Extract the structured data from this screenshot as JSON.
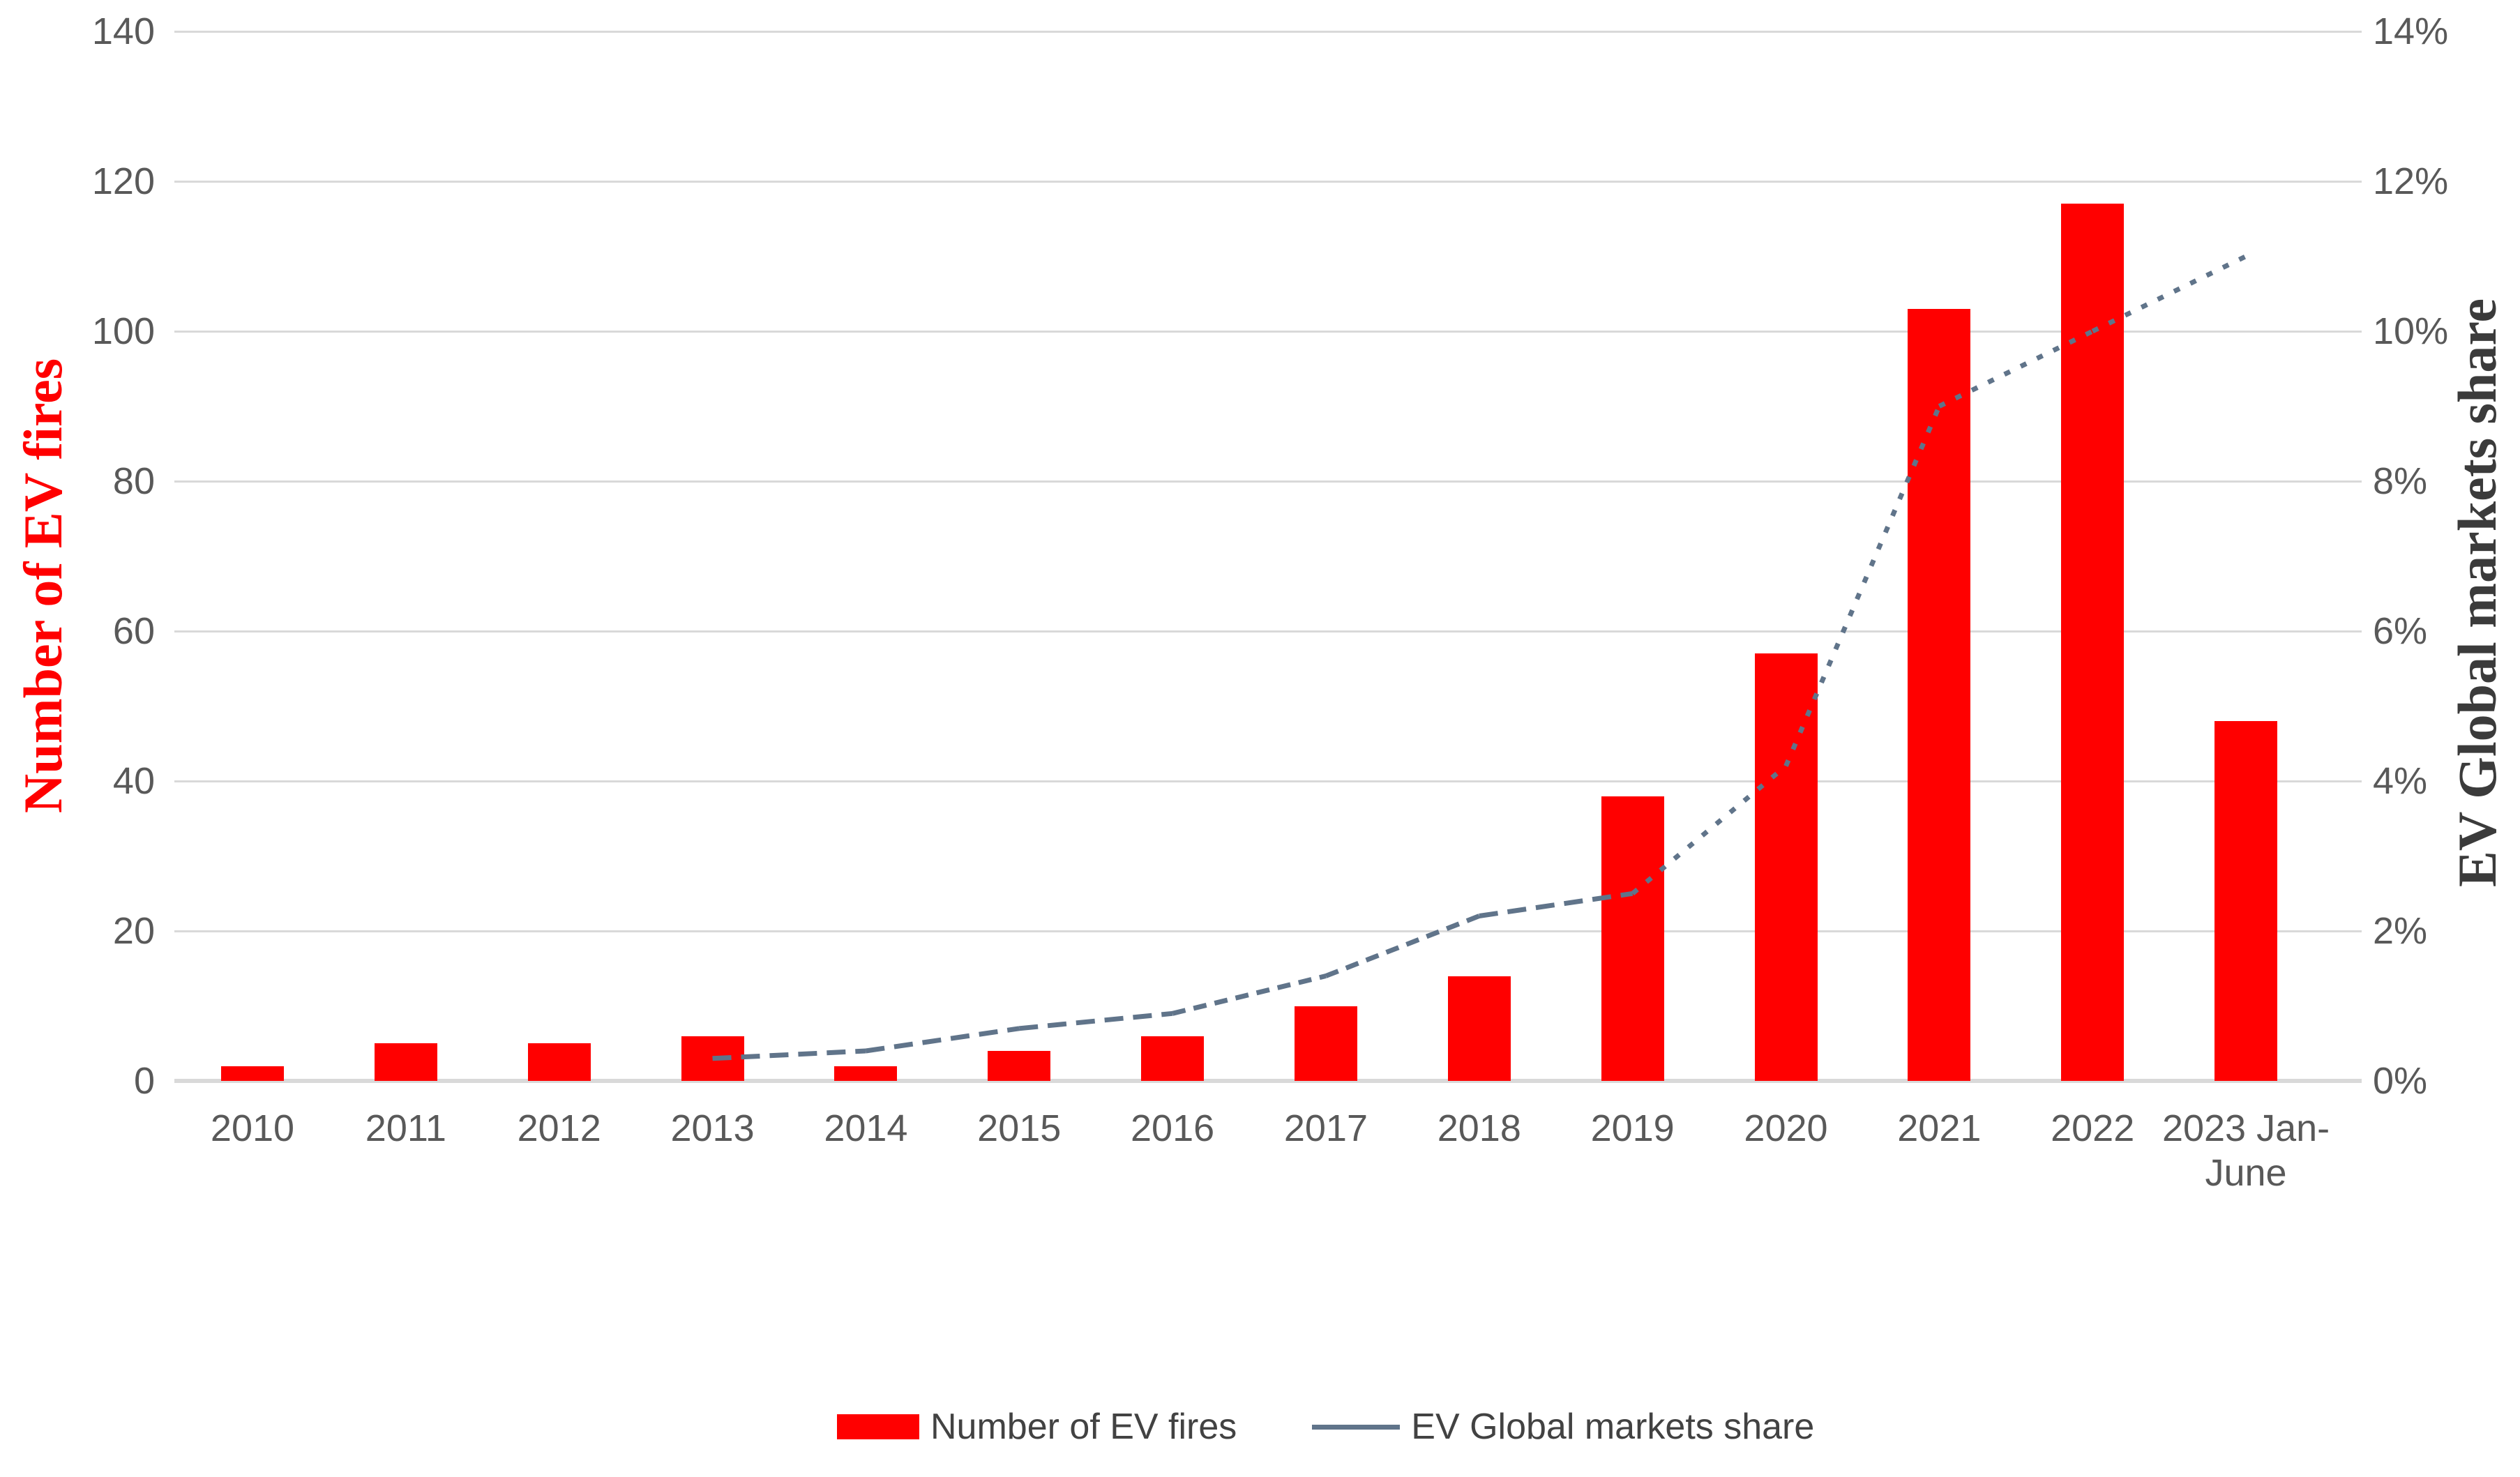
{
  "chart_data": {
    "type": "combo-bar-line",
    "categories": [
      "2010",
      "2011",
      "2012",
      "2013",
      "2014",
      "2015",
      "2016",
      "2017",
      "2018",
      "2019",
      "2020",
      "2021",
      "2022",
      "2023 Jan-June"
    ],
    "series": [
      {
        "name": "Number of EV fires",
        "chart": "bar",
        "axis": "left",
        "color": "#ff0000",
        "values": [
          2,
          5,
          5,
          6,
          2,
          4,
          6,
          10,
          14,
          38,
          57,
          103,
          117,
          48
        ]
      },
      {
        "name": "EV Global markets share",
        "chart": "line",
        "axis": "right",
        "color": "#60748a",
        "line_style": "dashed-then-dotted",
        "unit": "%",
        "values": [
          null,
          null,
          null,
          0.3,
          0.4,
          0.7,
          0.9,
          1.4,
          2.2,
          2.5,
          4.2,
          9,
          10,
          11
        ]
      }
    ],
    "left_axis": {
      "title": "Number of EV fires",
      "title_color": "#ff0000",
      "min": 0,
      "max": 140,
      "step": 20,
      "ticks": [
        "0",
        "20",
        "40",
        "60",
        "80",
        "100",
        "120",
        "140"
      ]
    },
    "right_axis": {
      "title": "EV Global markets share",
      "title_color": "#3b3b3b",
      "min": 0,
      "max": 14,
      "step": 2,
      "ticks": [
        "0%",
        "2%",
        "4%",
        "6%",
        "8%",
        "10%",
        "12%",
        "14%"
      ]
    },
    "grid": "horizontal",
    "legend_position": "bottom",
    "legend": {
      "items": [
        {
          "label": "Number of EV fires",
          "swatch": "bar",
          "color": "#ff0000"
        },
        {
          "label": "EV Global markets share",
          "swatch": "line",
          "color": "#60748a"
        }
      ]
    }
  },
  "colors": {
    "background": "#ffffff",
    "gridline": "#d9d9d9",
    "tick_label": "#595959",
    "legend_text": "#424242",
    "bar": "#ff0000",
    "line": "#60748a"
  }
}
